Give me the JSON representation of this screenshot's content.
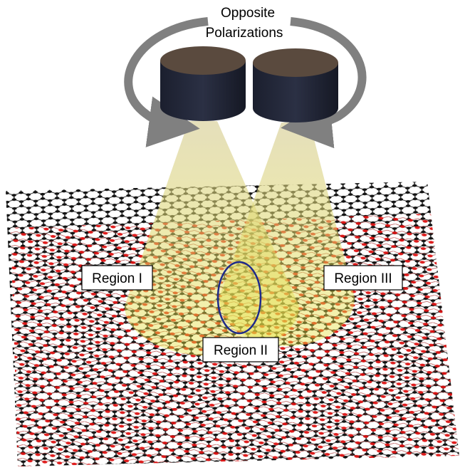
{
  "caption": {
    "line1": "Opposite",
    "line2": "Polarizations"
  },
  "regions": [
    "Region I",
    "Region II",
    "Region III"
  ]
}
